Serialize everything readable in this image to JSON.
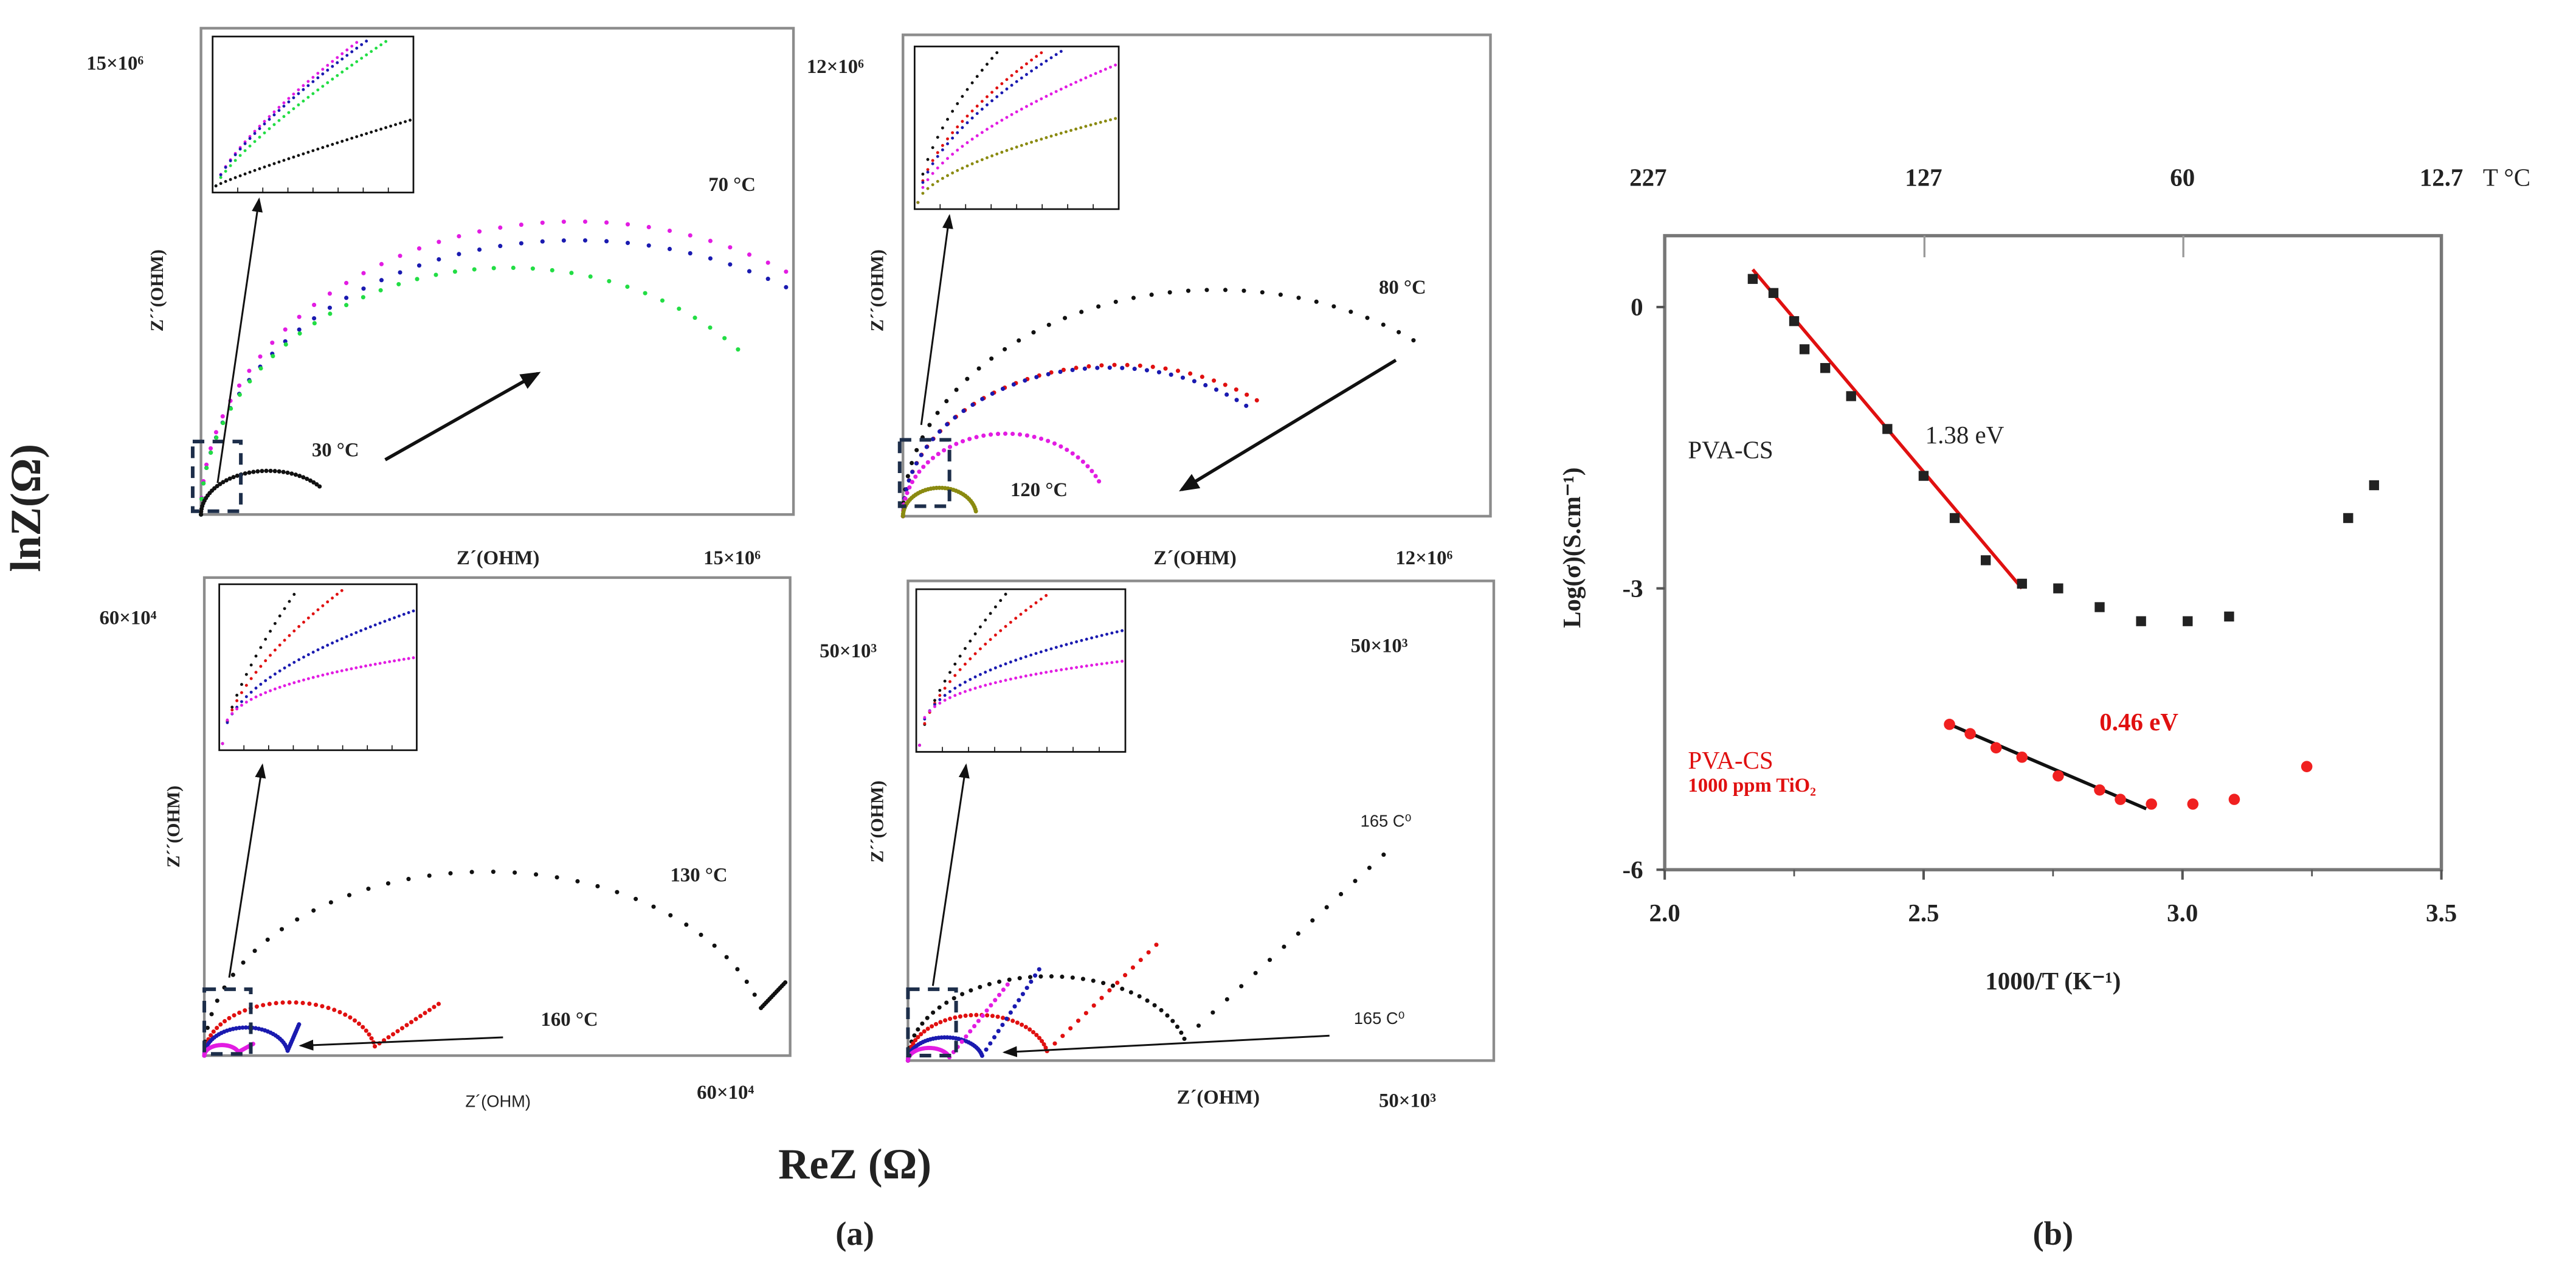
{
  "figure": {
    "panel_a_label": "(a)",
    "panel_b_label": "(b)",
    "a_ylabel": "lnZ(Ω)",
    "a_xlabel": "ReZ (Ω)"
  },
  "chart_data": [
    {
      "type": "scatter",
      "panel": "a-top-left",
      "xlabel": "Z´(OHM)",
      "ylabel": "Z´´(OHM)",
      "xmax_label": "15×10⁶",
      "ymax_label": "15×10⁶",
      "xlim": [
        0,
        15000000
      ],
      "ylim": [
        0,
        12300000
      ],
      "annotations": [
        "70 °C",
        "30 °C"
      ],
      "series": [
        {
          "name": "70 °C (magenta)",
          "color": "#e21ce2",
          "arc": {
            "center": 9500000,
            "radius": 9500000,
            "k": 0.78,
            "end_deg": 56
          },
          "tail": []
        },
        {
          "name": "blue",
          "color": "#1a1ab0",
          "arc": {
            "center": 9500000,
            "radius": 9500000,
            "k": 0.73,
            "end_deg": 56
          },
          "tail": []
        },
        {
          "name": "green",
          "color": "#22dd44",
          "arc": {
            "center": 7800000,
            "radius": 7800000,
            "k": 0.8,
            "end_deg": 42
          },
          "tail": []
        },
        {
          "name": "30 °C",
          "color": "#111111",
          "arc": {
            "center": 1700000,
            "radius": 1700000,
            "k": 0.65,
            "end_deg": 40
          },
          "tail": []
        }
      ],
      "inset_series": [
        {
          "color": "#e21ce2",
          "a": 1.25,
          "p": 0.75
        },
        {
          "color": "#1a1ab0",
          "a": 1.2,
          "p": 0.75
        },
        {
          "color": "#22dd44",
          "a": 1.1,
          "p": 0.8
        },
        {
          "color": "#111111",
          "a": 0.45,
          "p": 0.9
        }
      ]
    },
    {
      "type": "scatter",
      "panel": "a-top-right",
      "xlabel": "Z´(OHM)",
      "ylabel": "Z´´(OHM)",
      "xmax_label": "12×10⁶",
      "ymax_label": "12×10⁶",
      "xlim": [
        0,
        12000000
      ],
      "ylim": [
        0,
        9800000
      ],
      "annotations": [
        "80 °C",
        "120 °C"
      ],
      "series": [
        {
          "name": "80 °C",
          "color": "#111111",
          "arc": {
            "center": 6400000,
            "radius": 6400000,
            "k": 0.72,
            "end_deg": 51
          },
          "tail": []
        },
        {
          "name": "red",
          "color": "#e01010",
          "arc": {
            "center": 4400000,
            "radius": 4400000,
            "k": 0.7,
            "end_deg": 50
          },
          "tail": []
        },
        {
          "name": "blue",
          "color": "#1a1ab0",
          "arc": {
            "center": 4200000,
            "radius": 4200000,
            "k": 0.72,
            "end_deg": 48
          },
          "tail": []
        },
        {
          "name": "magenta",
          "color": "#e21ce2",
          "arc": {
            "center": 2100000,
            "radius": 2100000,
            "k": 0.8,
            "end_deg": 25
          },
          "tail": []
        },
        {
          "name": "120 °C",
          "color": "#8a8a10",
          "arc": {
            "center": 750000,
            "radius": 750000,
            "k": 0.77,
            "end_deg": 10
          },
          "tail": []
        }
      ],
      "inset_series": [
        {
          "color": "#111111",
          "a": 1.7,
          "p": 0.6
        },
        {
          "color": "#e01010",
          "a": 1.3,
          "p": 0.6
        },
        {
          "color": "#1a1ab0",
          "a": 1.2,
          "p": 0.6
        },
        {
          "color": "#e21ce2",
          "a": 0.9,
          "p": 0.6
        },
        {
          "color": "#8a8a10",
          "a": 0.55,
          "p": 0.6
        }
      ]
    },
    {
      "type": "scatter",
      "panel": "a-bottom-left",
      "xlabel": "Z´(OHM)",
      "ylabel": "Z´´(OHM)",
      "xmax_label": "60×10⁴",
      "ymax_label": "60×10⁴",
      "xlim": [
        0,
        600000
      ],
      "ylim": [
        0,
        490000
      ],
      "annotations": [
        "130 °C",
        "160 °C"
      ],
      "series": [
        {
          "name": "130 °C",
          "color": "#111111",
          "arc": {
            "center": 290000,
            "radius": 290000,
            "k": 0.65,
            "end_deg": 15
          },
          "tail": [
            [
              595000,
              75000
            ]
          ]
        },
        {
          "name": "red",
          "color": "#e01010",
          "arc": {
            "center": 88000,
            "radius": 88000,
            "k": 0.62,
            "end_deg": 10
          },
          "tail": [
            [
              240000,
              53000
            ]
          ]
        },
        {
          "name": "blue",
          "color": "#1a1ab0",
          "arc": {
            "center": 43000,
            "radius": 43000,
            "k": 0.67,
            "end_deg": 10
          },
          "tail": [
            [
              97000,
              32000
            ]
          ]
        },
        {
          "name": "160 °C",
          "color": "#e21ce2",
          "arc": {
            "center": 18000,
            "radius": 18000,
            "k": 0.6,
            "end_deg": 20
          },
          "tail": [
            [
              50000,
              12000
            ]
          ]
        }
      ],
      "inset_series": [
        {
          "color": "#111111",
          "a": 1.9,
          "p": 0.7
        },
        {
          "color": "#e01010",
          "a": 1.3,
          "p": 0.6
        },
        {
          "color": "#1a1ab0",
          "a": 0.85,
          "p": 0.5
        },
        {
          "color": "#e21ce2",
          "a": 0.55,
          "p": 0.35
        }
      ]
    },
    {
      "type": "scatter",
      "panel": "a-bottom-right",
      "xlabel": "Z´(OHM)",
      "ylabel": "Z´´(OHM)",
      "xmax_label": "50×10³",
      "ymax_label": "50×10³",
      "corner_label": "50×10³",
      "xlim": [
        0,
        50000
      ],
      "ylim": [
        0,
        41000
      ],
      "annotations": [
        "165 C⁰",
        "165 C⁰"
      ],
      "series": [
        {
          "name": "black",
          "color": "#111111",
          "arc": {
            "center": 12000,
            "radius": 12000,
            "k": 0.6,
            "end_deg": 15
          },
          "tail": [
            [
              40600,
              17600
            ]
          ]
        },
        {
          "name": "red",
          "color": "#e01010",
          "arc": {
            "center": 6000,
            "radius": 6000,
            "k": 0.65,
            "end_deg": 12
          },
          "tail": [
            [
              21200,
              9900
            ]
          ]
        },
        {
          "name": "blue",
          "color": "#1a1ab0",
          "arc": {
            "center": 3200,
            "radius": 3200,
            "k": 0.62,
            "end_deg": 12
          },
          "tail": [
            [
              11200,
              7800
            ]
          ]
        },
        {
          "name": "magenta",
          "color": "#e21ce2",
          "arc": {
            "center": 1800,
            "radius": 1800,
            "k": 0.6,
            "end_deg": 15
          },
          "tail": [
            [
              8500,
              6500
            ]
          ]
        }
      ],
      "inset_series": [
        {
          "color": "#111111",
          "a": 1.8,
          "p": 0.7
        },
        {
          "color": "#e01010",
          "a": 1.3,
          "p": 0.6
        },
        {
          "color": "#1a1ab0",
          "a": 0.75,
          "p": 0.4
        },
        {
          "color": "#e21ce2",
          "a": 0.55,
          "p": 0.3
        }
      ]
    },
    {
      "type": "scatter",
      "panel": "b",
      "xlabel": "1000/T (K⁻¹)",
      "ylabel": "Log(σ)(S.cm⁻¹)",
      "xlim": [
        2.0,
        3.5
      ],
      "ylim": [
        -6,
        0.76
      ],
      "x_ticks": [
        "2.0",
        "2.5",
        "3.0",
        "3.5"
      ],
      "x_tick_values": [
        2.0,
        2.5,
        3.0,
        3.5
      ],
      "y_ticks": [
        "0",
        "-3",
        "-6"
      ],
      "y_tick_values": [
        0,
        -3,
        -6
      ],
      "top_axis": {
        "label": "T °C",
        "ticks": [
          "227",
          "127",
          "60",
          "12.7"
        ],
        "tick_values": [
          2.0,
          2.5,
          3.0,
          3.5
        ]
      },
      "series": [
        {
          "name": "PVA-CS",
          "color": "#222222",
          "marker": "square",
          "x": [
            2.17,
            2.21,
            2.25,
            2.27,
            2.31,
            2.36,
            2.43,
            2.5,
            2.56,
            2.62,
            2.69,
            2.76,
            2.84,
            2.92,
            3.01,
            3.09,
            3.32,
            3.37
          ],
          "y": [
            0.3,
            0.15,
            -0.15,
            -0.45,
            -0.65,
            -0.95,
            -1.3,
            -1.8,
            -2.25,
            -2.7,
            -2.95,
            -3.0,
            -3.2,
            -3.35,
            -3.35,
            -3.3,
            -2.25,
            -1.9
          ],
          "fit": {
            "x": [
              2.17,
              2.69
            ],
            "y": [
              0.4,
              -3.0
            ],
            "color": "#e01010",
            "label": "1.38 eV"
          }
        },
        {
          "name": "PVA-CS 1000 ppm TiO₂",
          "color": "#f02020",
          "marker": "circle",
          "x": [
            2.55,
            2.59,
            2.64,
            2.69,
            2.76,
            2.84,
            2.88,
            2.94,
            3.02,
            3.1,
            3.24
          ],
          "y": [
            -4.45,
            -4.55,
            -4.7,
            -4.8,
            -5.0,
            -5.15,
            -5.25,
            -5.3,
            -5.3,
            -5.25,
            -4.9
          ],
          "fit": {
            "x": [
              2.55,
              2.93
            ],
            "y": [
              -4.45,
              -5.35
            ],
            "color": "#111111",
            "label": "0.46 eV"
          }
        }
      ],
      "legend_labels": {
        "pva_cs": "PVA-CS",
        "pva_cs_tio2_line1": "PVA-CS",
        "pva_cs_tio2_line2": "1000 ppm TiO₂"
      }
    }
  ]
}
